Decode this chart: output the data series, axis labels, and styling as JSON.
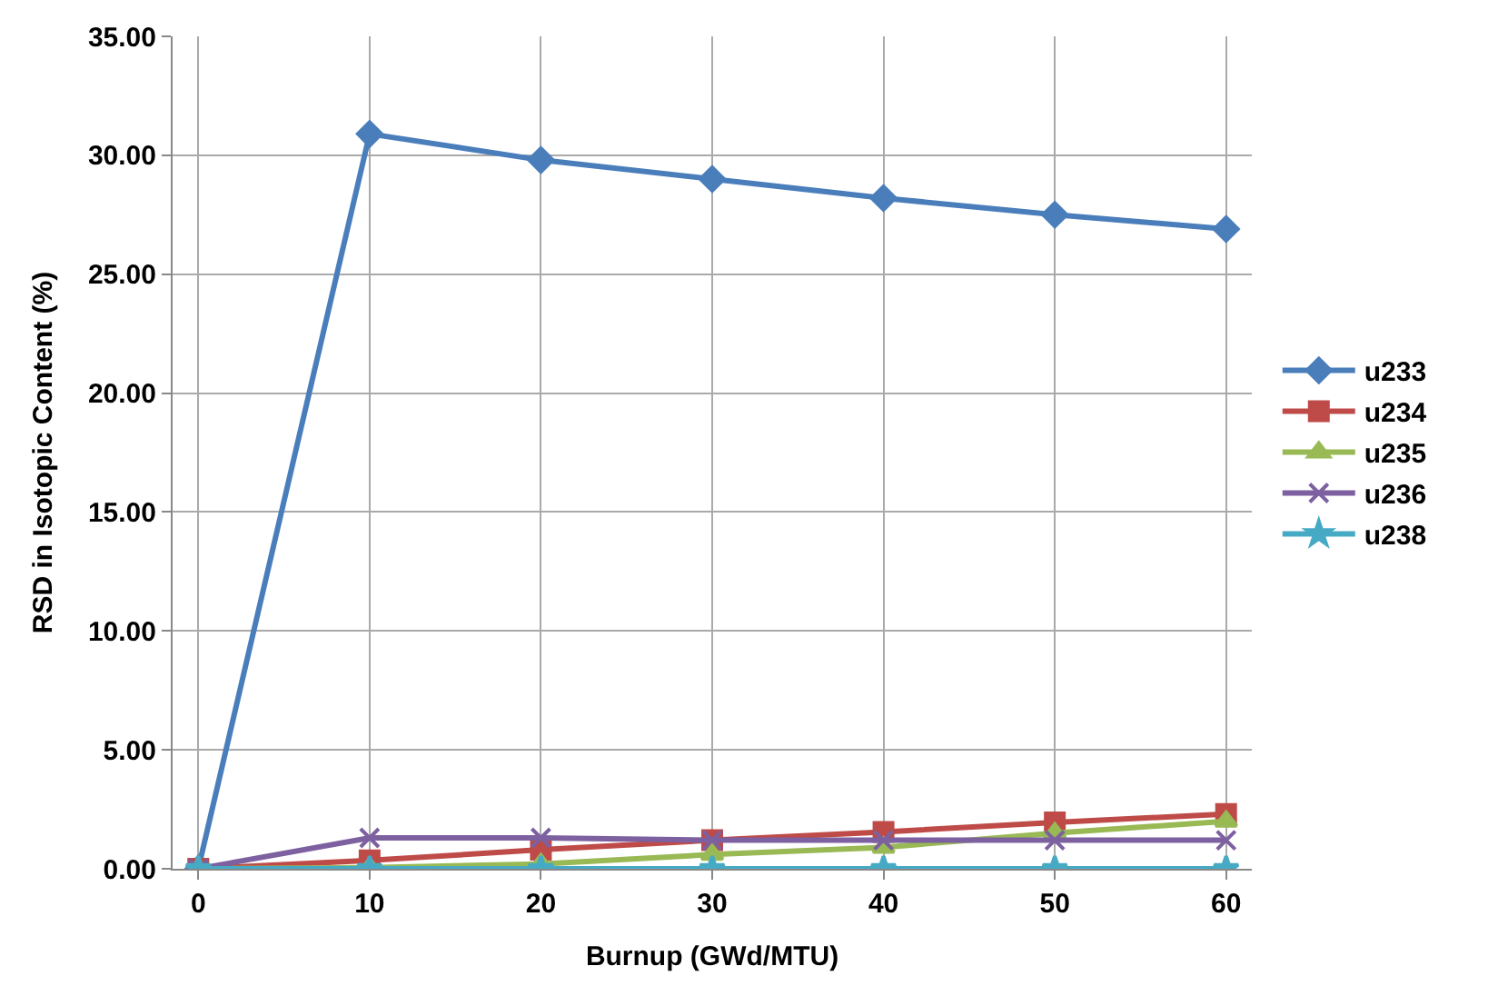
{
  "chart_data": {
    "type": "line",
    "xlabel": "Burnup (GWd/MTU)",
    "ylabel": "RSD in Isotopic Content (%)",
    "x": [
      0,
      10,
      20,
      30,
      40,
      50,
      60
    ],
    "xlim": [
      -1.5,
      61.5
    ],
    "xticks": [
      0,
      10,
      20,
      30,
      40,
      50,
      60
    ],
    "ylim": [
      0,
      35
    ],
    "yticks": [
      {
        "value": 0,
        "label": "0.00"
      },
      {
        "value": 5,
        "label": "5.00"
      },
      {
        "value": 10,
        "label": "10.00"
      },
      {
        "value": 15,
        "label": "15.00"
      },
      {
        "value": 20,
        "label": "20.00"
      },
      {
        "value": 25,
        "label": "25.00"
      },
      {
        "value": 30,
        "label": "30.00"
      },
      {
        "value": 35,
        "label": "35.00"
      }
    ],
    "grid": true,
    "legend": "right",
    "series": [
      {
        "name": "u233",
        "color": "#4a7ebb",
        "marker": "diamond",
        "values": [
          0,
          30.9,
          29.8,
          29.0,
          28.2,
          27.5,
          26.9
        ]
      },
      {
        "name": "u234",
        "color": "#be4b48",
        "marker": "square",
        "values": [
          0,
          0.35,
          0.8,
          1.2,
          1.55,
          1.95,
          2.3
        ]
      },
      {
        "name": "u235",
        "color": "#98b954",
        "marker": "triangle",
        "values": [
          0,
          0.05,
          0.2,
          0.6,
          0.9,
          1.5,
          2.0
        ]
      },
      {
        "name": "u236",
        "color": "#7d60a0",
        "marker": "cross",
        "values": [
          0,
          1.3,
          1.3,
          1.2,
          1.2,
          1.2,
          1.2
        ]
      },
      {
        "name": "u238",
        "color": "#46aac5",
        "marker": "star",
        "values": [
          0,
          0,
          0,
          0,
          0,
          0,
          0
        ]
      }
    ]
  }
}
